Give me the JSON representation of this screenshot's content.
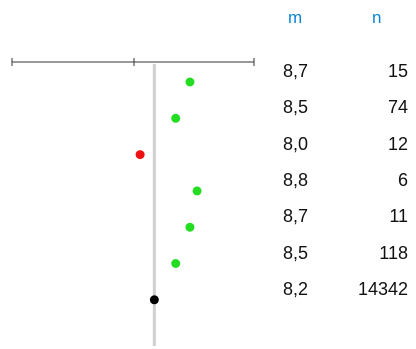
{
  "chart_data": {
    "type": "scatter",
    "columns": {
      "m": "m",
      "n": "n"
    },
    "reference_value": 8.2,
    "x_range": [
      6.2,
      9.6
    ],
    "colors": {
      "above": "#22dd22",
      "below": "#ee1111",
      "total": "#000000",
      "ref_line": "#d0d0d0",
      "header": "#0b84d6"
    },
    "rows": [
      {
        "m": 8.7,
        "m_label": "8,7",
        "n": "15",
        "group": "above"
      },
      {
        "m": 8.5,
        "m_label": "8,5",
        "n": "74",
        "group": "above"
      },
      {
        "m": 8.0,
        "m_label": "8,0",
        "n": "12",
        "group": "below"
      },
      {
        "m": 8.8,
        "m_label": "8,8",
        "n": "6",
        "group": "above"
      },
      {
        "m": 8.7,
        "m_label": "8,7",
        "n": "11",
        "group": "above"
      },
      {
        "m": 8.5,
        "m_label": "8,5",
        "n": "118",
        "group": "above"
      },
      {
        "m": 8.2,
        "m_label": "8,2",
        "n": "14342",
        "group": "total"
      }
    ]
  }
}
